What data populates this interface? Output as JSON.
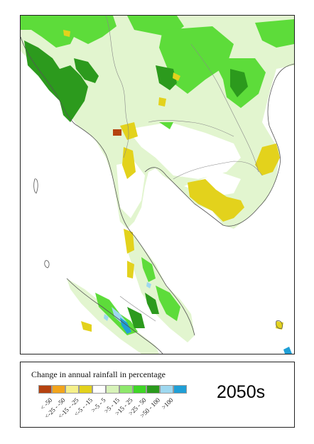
{
  "legend": {
    "title": "Change in annual rainfall in percentage",
    "classes": [
      {
        "label": "< -50",
        "color": "#b5420f"
      },
      {
        "label": "<-25 - -50",
        "color": "#f2a41c"
      },
      {
        "label": "<-15 - -25",
        "color": "#f5f08a"
      },
      {
        "label": "<-5 - -15",
        "color": "#e3d21c"
      },
      {
        "label": ">-5 - 5",
        "color": "#ffffff"
      },
      {
        "label": ">5 - 15",
        "color": "#d7f3b9"
      },
      {
        "label": ">15 - 25",
        "color": "#8ee86c"
      },
      {
        "label": ">25 - 50",
        "color": "#3fd626"
      },
      {
        "label": ">50 - 100",
        "color": "#2a9a1c"
      },
      {
        "label": ">100",
        "color": "#9ed8f0"
      },
      {
        "label": "",
        "color": "#1f9fd6"
      }
    ]
  },
  "period": "2050s",
  "map": {
    "region": "Mainland Southeast Asia",
    "colors": {
      "coast": "#555555",
      "border": "#888888"
    }
  }
}
